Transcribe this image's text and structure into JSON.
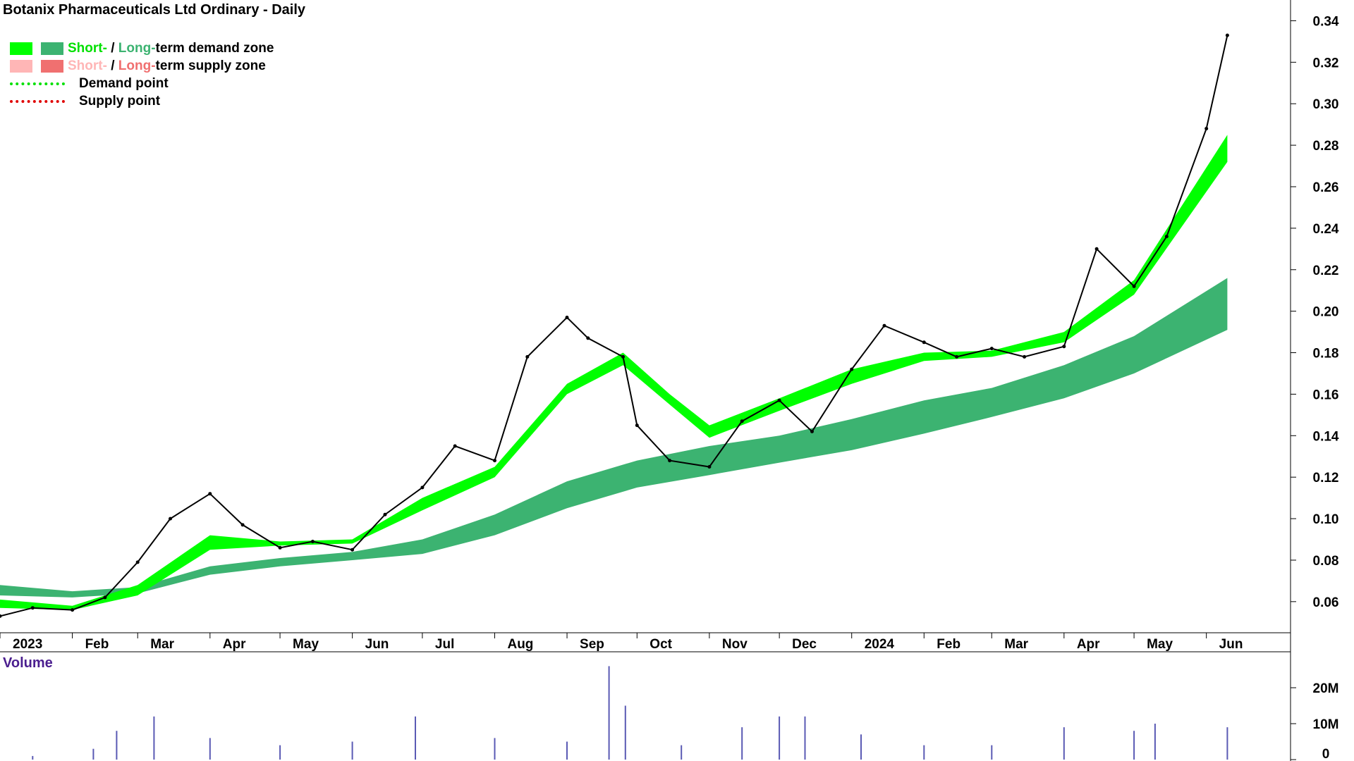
{
  "title": "Botanix Pharmaceuticals Ltd Ordinary - Daily",
  "legend": {
    "short_label": "Short-",
    "sep": " / ",
    "long_label": "Long-",
    "demand_suffix": "term demand zone",
    "supply_suffix": "term supply zone",
    "demand_point": "Demand point",
    "supply_point": "Supply point"
  },
  "volume_label": "Volume",
  "colors": {
    "short_demand": "#00ff00",
    "long_demand": "#3cb371",
    "short_supply": "#ffb6b6",
    "long_supply": "#f07070",
    "demand_point": "#00e000",
    "supply_point": "#e00000",
    "overlap": "#ff6a1a",
    "volume": "#5a5ab4"
  },
  "chart_data": {
    "type": "line",
    "title": "Botanix Pharmaceuticals Ltd Ordinary - Daily",
    "x_tick_labels": [
      "2023",
      "Feb",
      "Mar",
      "Apr",
      "May",
      "Jun",
      "Jul",
      "Aug",
      "Sep",
      "Oct",
      "Nov",
      "Dec",
      "2024",
      "Feb",
      "Mar",
      "Apr",
      "May",
      "Jun"
    ],
    "y_tick_labels": [
      "0.06",
      "0.08",
      "0.10",
      "0.12",
      "0.14",
      "0.16",
      "0.18",
      "0.20",
      "0.22",
      "0.24",
      "0.26",
      "0.28",
      "0.30",
      "0.32",
      "0.34"
    ],
    "ylim": [
      0.045,
      0.35
    ],
    "volume_tick_labels": [
      "20M",
      "10M",
      "0"
    ],
    "volume_ylim": [
      0,
      30000000
    ],
    "grid": false,
    "series": [
      {
        "name": "Price",
        "x": [
          "2023-01-01",
          "2023-01-15",
          "2023-02-01",
          "2023-02-15",
          "2023-03-01",
          "2023-03-15",
          "2023-04-01",
          "2023-04-15",
          "2023-05-01",
          "2023-05-15",
          "2023-06-01",
          "2023-06-15",
          "2023-07-01",
          "2023-07-15",
          "2023-08-01",
          "2023-08-15",
          "2023-09-01",
          "2023-09-10",
          "2023-09-25",
          "2023-10-01",
          "2023-10-15",
          "2023-11-01",
          "2023-11-15",
          "2023-12-01",
          "2023-12-15",
          "2024-01-01",
          "2024-01-15",
          "2024-02-01",
          "2024-02-15",
          "2024-03-01",
          "2024-03-15",
          "2024-04-01",
          "2024-04-15",
          "2024-05-01",
          "2024-05-15",
          "2024-06-01",
          "2024-06-10"
        ],
        "values": [
          0.053,
          0.057,
          0.056,
          0.062,
          0.079,
          0.1,
          0.112,
          0.097,
          0.086,
          0.089,
          0.085,
          0.102,
          0.115,
          0.135,
          0.128,
          0.178,
          0.197,
          0.187,
          0.178,
          0.145,
          0.128,
          0.125,
          0.147,
          0.157,
          0.142,
          0.172,
          0.193,
          0.185,
          0.178,
          0.182,
          0.178,
          0.183,
          0.23,
          0.212,
          0.236,
          0.288,
          0.333
        ]
      },
      {
        "name": "Short-term zone top",
        "x": [
          "2023-01-01",
          "2023-02-01",
          "2023-03-01",
          "2023-04-01",
          "2023-05-01",
          "2023-06-01",
          "2023-07-01",
          "2023-08-01",
          "2023-09-01",
          "2023-09-25",
          "2023-10-15",
          "2023-11-01",
          "2023-12-01",
          "2024-01-01",
          "2024-02-01",
          "2024-03-01",
          "2024-04-01",
          "2024-05-01",
          "2024-06-10"
        ],
        "values": [
          0.061,
          0.058,
          0.068,
          0.092,
          0.089,
          0.09,
          0.11,
          0.125,
          0.165,
          0.18,
          0.16,
          0.145,
          0.158,
          0.172,
          0.18,
          0.181,
          0.19,
          0.215,
          0.285
        ]
      },
      {
        "name": "Short-term zone bottom",
        "x": [
          "2023-01-01",
          "2023-02-01",
          "2023-03-01",
          "2023-04-01",
          "2023-05-01",
          "2023-06-01",
          "2023-07-01",
          "2023-08-01",
          "2023-09-01",
          "2023-09-25",
          "2023-10-15",
          "2023-11-01",
          "2023-12-01",
          "2024-01-01",
          "2024-02-01",
          "2024-03-01",
          "2024-04-01",
          "2024-05-01",
          "2024-06-10"
        ],
        "values": [
          0.057,
          0.056,
          0.063,
          0.085,
          0.087,
          0.088,
          0.104,
          0.12,
          0.16,
          0.174,
          0.155,
          0.139,
          0.152,
          0.165,
          0.176,
          0.178,
          0.185,
          0.208,
          0.272
        ]
      },
      {
        "name": "Long-term zone top",
        "x": [
          "2023-01-01",
          "2023-02-01",
          "2023-03-01",
          "2023-04-01",
          "2023-05-01",
          "2023-06-01",
          "2023-07-01",
          "2023-08-01",
          "2023-09-01",
          "2023-10-01",
          "2023-11-01",
          "2023-12-01",
          "2024-01-01",
          "2024-02-01",
          "2024-03-01",
          "2024-04-01",
          "2024-05-01",
          "2024-06-10"
        ],
        "values": [
          0.068,
          0.065,
          0.067,
          0.077,
          0.081,
          0.084,
          0.09,
          0.102,
          0.118,
          0.128,
          0.135,
          0.14,
          0.148,
          0.157,
          0.163,
          0.174,
          0.188,
          0.216
        ]
      },
      {
        "name": "Long-term zone bottom",
        "x": [
          "2023-01-01",
          "2023-02-01",
          "2023-03-01",
          "2023-04-01",
          "2023-05-01",
          "2023-06-01",
          "2023-07-01",
          "2023-08-01",
          "2023-09-01",
          "2023-10-01",
          "2023-11-01",
          "2023-12-01",
          "2024-01-01",
          "2024-02-01",
          "2024-03-01",
          "2024-04-01",
          "2024-05-01",
          "2024-06-10"
        ],
        "values": [
          0.063,
          0.062,
          0.064,
          0.073,
          0.077,
          0.08,
          0.083,
          0.092,
          0.105,
          0.115,
          0.121,
          0.127,
          0.133,
          0.141,
          0.149,
          0.158,
          0.17,
          0.191
        ]
      },
      {
        "name": "Volume",
        "x": [
          "2023-01-15",
          "2023-02-10",
          "2023-02-20",
          "2023-03-08",
          "2023-04-01",
          "2023-05-01",
          "2023-06-01",
          "2023-06-28",
          "2023-08-01",
          "2023-09-01",
          "2023-09-19",
          "2023-09-26",
          "2023-10-20",
          "2023-11-15",
          "2023-12-01",
          "2023-12-12",
          "2024-01-05",
          "2024-02-01",
          "2024-03-01",
          "2024-04-01",
          "2024-05-01",
          "2024-05-10",
          "2024-06-10"
        ],
        "values": [
          1000000,
          3000000,
          8000000,
          12000000,
          6000000,
          4000000,
          5000000,
          12000000,
          6000000,
          5000000,
          26000000,
          15000000,
          4000000,
          9000000,
          12000000,
          12000000,
          7000000,
          4000000,
          4000000,
          9000000,
          8000000,
          10000000,
          9000000
        ]
      }
    ]
  }
}
